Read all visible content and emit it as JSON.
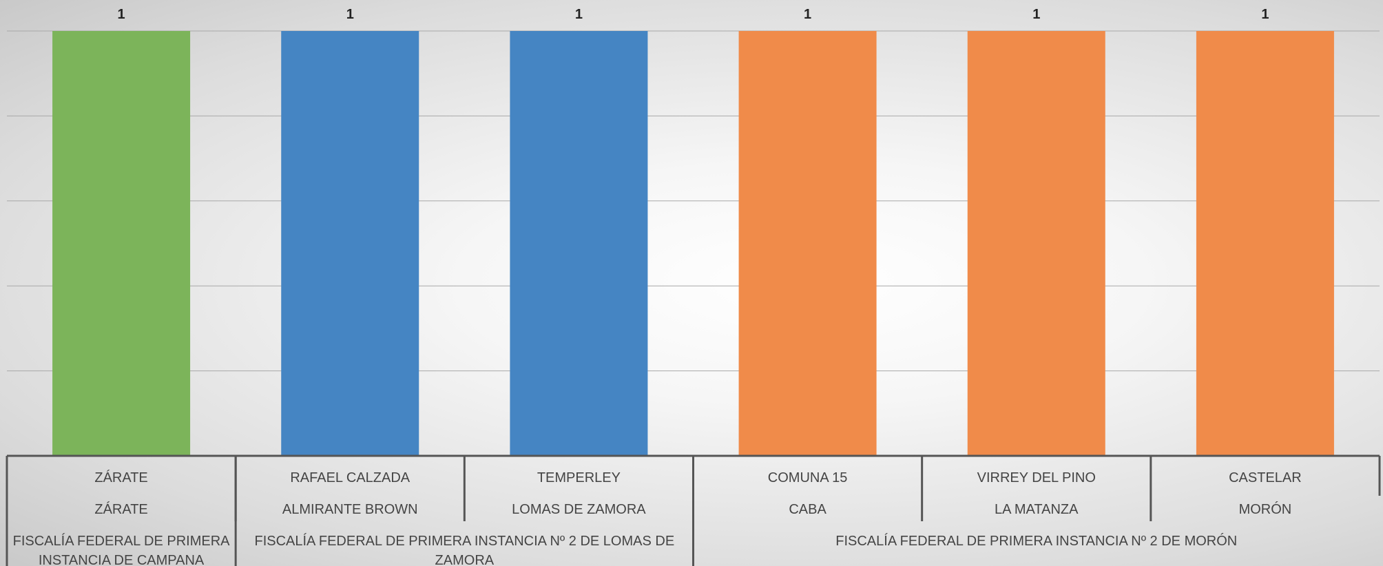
{
  "chart_data": {
    "type": "bar",
    "title": "",
    "xlabel": "",
    "ylabel": "",
    "ylim": [
      0,
      1
    ],
    "grid": true,
    "categories": [
      {
        "level1": "ZÁRATE",
        "level2": "ZÁRATE",
        "level3": "FISCALÍA FEDERAL DE PRIMERA INSTANCIA DE CAMPANA"
      },
      {
        "level1": "RAFAEL CALZADA",
        "level2": "ALMIRANTE BROWN",
        "level3": "FISCALÍA FEDERAL DE PRIMERA INSTANCIA Nº 2 DE LOMAS DE ZAMORA"
      },
      {
        "level1": "TEMPERLEY",
        "level2": "LOMAS DE ZAMORA",
        "level3": "FISCALÍA FEDERAL DE PRIMERA INSTANCIA Nº 2 DE LOMAS DE ZAMORA"
      },
      {
        "level1": "COMUNA 15",
        "level2": "CABA",
        "level3": "FISCALÍA FEDERAL DE PRIMERA INSTANCIA Nº 2 DE MORÓN"
      },
      {
        "level1": "VIRREY DEL PINO",
        "level2": "LA MATANZA",
        "level3": "FISCALÍA FEDERAL DE PRIMERA INSTANCIA Nº 2 DE MORÓN"
      },
      {
        "level1": "CASTELAR",
        "level2": "MORÓN",
        "level3": "FISCALÍA FEDERAL DE PRIMERA INSTANCIA Nº 2 DE MORÓN"
      }
    ],
    "values": [
      1,
      1,
      1,
      1,
      1,
      1
    ],
    "data_labels": [
      "1",
      "1",
      "1",
      "1",
      "1",
      "1"
    ],
    "bar_colors": [
      "#7cb45a",
      "#4585c3",
      "#4585c3",
      "#f08b4a",
      "#f08b4a",
      "#f08b4a"
    ],
    "level2_groups": [
      {
        "label": "ZÁRATE",
        "span": 1
      },
      {
        "label": "ALMIRANTE BROWN",
        "span": 1
      },
      {
        "label": "LOMAS DE ZAMORA",
        "span": 1
      },
      {
        "label": "CABA",
        "span": 1
      },
      {
        "label": "LA MATANZA",
        "span": 1
      },
      {
        "label": "MORÓN",
        "span": 1
      }
    ],
    "level3_groups": [
      {
        "label_lines": [
          "FISCALÍA FEDERAL DE PRIMERA",
          "INSTANCIA DE CAMPANA"
        ],
        "span": 1
      },
      {
        "label_lines": [
          "FISCALÍA FEDERAL DE PRIMERA INSTANCIA Nº 2 DE LOMAS DE",
          "ZAMORA"
        ],
        "span": 2
      },
      {
        "label_lines": [
          "FISCALÍA FEDERAL DE PRIMERA INSTANCIA Nº 2 DE MORÓN"
        ],
        "span": 3
      }
    ]
  }
}
